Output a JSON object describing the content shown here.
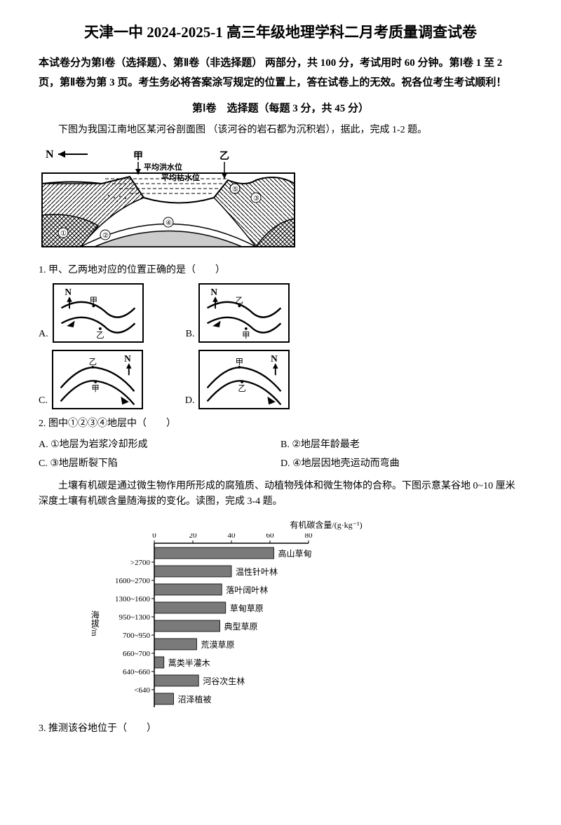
{
  "title": "天津一中 2024-2025-1 高三年级地理学科二月考质量调查试卷",
  "intro": "本试卷分为第Ⅰ卷（选择题）、第Ⅱ卷（非选择题） 两部分，共 100 分，考试用时 60 分钟。第Ⅰ卷 1 至 2 页，第Ⅱ卷为第 3 页。考生务必将答案涂写规定的位置上，答在试卷上的无效。祝各位考生考试顺利！",
  "section1_header": "第Ⅰ卷　选择题（每题 3 分，共 45 分）",
  "context1": "下图为我国江南地区某河谷剖面图 （该河谷的岩石都为沉积岩），据此，完成 1-2 题。",
  "main_diagram": {
    "labels": {
      "N": "N",
      "jia": "甲",
      "yi": "乙",
      "hong": "平均洪水位",
      "ku": "平均枯水位"
    },
    "marks": [
      "①",
      "②",
      "③",
      "④",
      "⑤"
    ]
  },
  "q1": "1. 甲、乙两地对应的位置正确的是（　　）",
  "q1_options": {
    "A": "A.",
    "B": "B.",
    "C": "C.",
    "D": "D."
  },
  "q2": "2. 图中①②③④地层中（　　）",
  "q2_options": {
    "A": "A. ①地层为岩浆冷却形成",
    "B": "B. ②地层年龄最老",
    "C": "C. ③地层断裂下陷",
    "D": "D. ④地层因地壳运动而弯曲"
  },
  "context2": "土壤有机碳是通过微生物作用所形成的腐殖质、动植物残体和微生物体的合称。下图示意某谷地 0~10 厘米深度土壤有机碳含量随海拔的变化。读图，完成 3-4 题。",
  "chart": {
    "xlabel": "有机碳含量/(g·kg⁻¹)",
    "ylabel": "海拔/m",
    "xmax": 80,
    "xticks": [
      0,
      20,
      40,
      60,
      80
    ],
    "bar_color": "#7a7a7a",
    "grid_color": "#000000",
    "background": "#ffffff",
    "categories": [
      ">2700",
      "1600~2700",
      "1300~1600",
      "950~1300",
      "700~950",
      "660~700",
      "640~660",
      "<640"
    ],
    "bars": [
      {
        "value": 62,
        "label": "高山草甸"
      },
      {
        "value": 40,
        "label": "温性针叶林"
      },
      {
        "value": 35,
        "label": "落叶阔叶林"
      },
      {
        "value": 37,
        "label": "草甸草原"
      },
      {
        "value": 34,
        "label": "典型草原"
      },
      {
        "value": 22,
        "label": "荒漠草原"
      },
      {
        "value": 5,
        "label": "蒿类半灌木"
      },
      {
        "value": 23,
        "label": "河谷次生林"
      },
      {
        "value": 10,
        "label": "沼泽植被"
      }
    ]
  },
  "q3": "3. 推测该谷地位于（　　）"
}
